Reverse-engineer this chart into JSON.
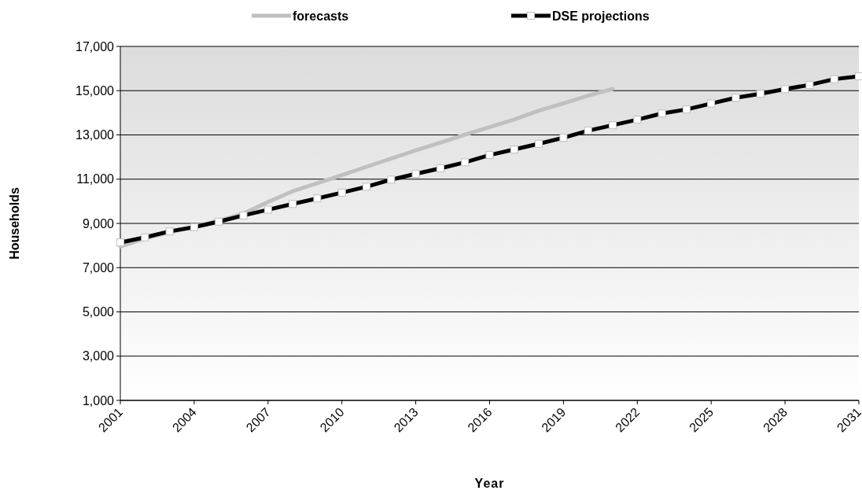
{
  "chart_data": {
    "type": "line",
    "xlabel": "Year",
    "ylabel": "Households",
    "x": [
      2001,
      2002,
      2003,
      2004,
      2005,
      2006,
      2007,
      2008,
      2009,
      2010,
      2011,
      2012,
      2013,
      2014,
      2015,
      2016,
      2017,
      2018,
      2019,
      2020,
      2021,
      2022,
      2023,
      2024,
      2025,
      2026,
      2027,
      2028,
      2029,
      2030,
      2031
    ],
    "series": [
      {
        "name": "forecasts",
        "color": "#c0c0c0",
        "marker": "none",
        "values": [
          7960,
          8320,
          8600,
          8850,
          9120,
          9440,
          9970,
          10450,
          10820,
          11180,
          11560,
          11930,
          12300,
          12650,
          13010,
          13350,
          13700,
          14100,
          14430,
          14770,
          15080,
          null,
          null,
          null,
          null,
          null,
          null,
          null,
          null,
          null,
          null
        ]
      },
      {
        "name": "DSE projections",
        "color": "#000000",
        "marker": "square",
        "values": [
          8140,
          8370,
          8640,
          8830,
          9080,
          9360,
          9620,
          9880,
          10130,
          10390,
          10660,
          10980,
          11240,
          11490,
          11760,
          12090,
          12340,
          12600,
          12870,
          13190,
          13440,
          13690,
          13970,
          14150,
          14420,
          14680,
          14860,
          15070,
          15260,
          15520,
          15650
        ]
      }
    ],
    "xlim": [
      2001,
      2031
    ],
    "xticks": [
      2001,
      2004,
      2007,
      2010,
      2013,
      2016,
      2019,
      2022,
      2025,
      2028,
      2031
    ],
    "ylim": [
      1000,
      17000
    ],
    "yticks": [
      {
        "value": 1000,
        "label": "1,000"
      },
      {
        "value": 3000,
        "label": "3,000"
      },
      {
        "value": 5000,
        "label": "5,000"
      },
      {
        "value": 7000,
        "label": "7,000"
      },
      {
        "value": 9000,
        "label": "9,000"
      },
      {
        "value": 11000,
        "label": "11,000"
      },
      {
        "value": 13000,
        "label": "13,000"
      },
      {
        "value": 15000,
        "label": "15,000"
      },
      {
        "value": 17000,
        "label": "17,000"
      }
    ],
    "grid": "y",
    "legend": "top",
    "line_style": "solid"
  }
}
